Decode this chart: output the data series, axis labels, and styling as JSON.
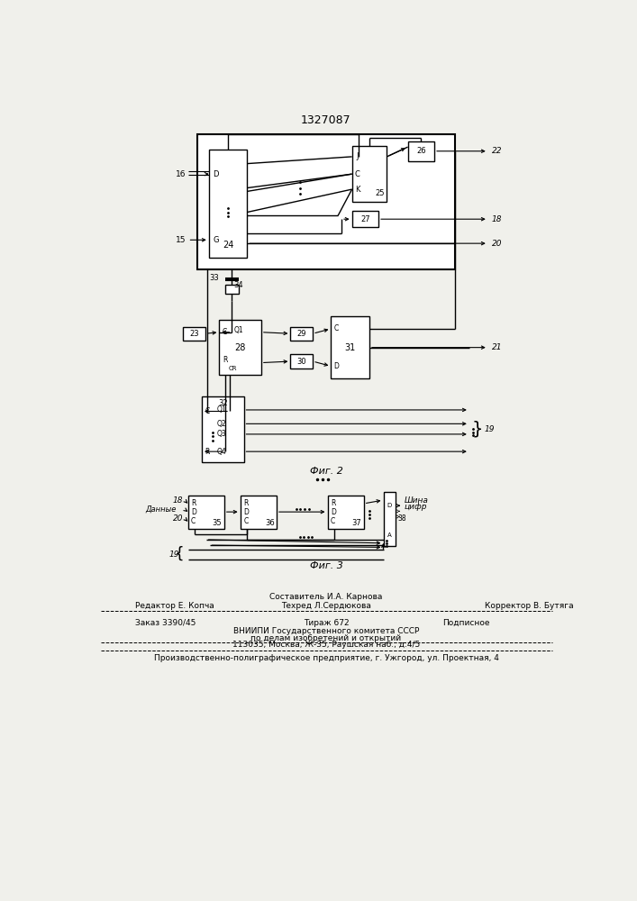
{
  "title": "1327087",
  "bg_color": "#f0f0eb",
  "lc": "#000000",
  "fig2_label": "Фиг. 2",
  "fig3_label": "Фиг. 3",
  "footer": {
    "line1": "Составитель И.А. Карнова",
    "line2_l": "Редактор Е. Копча",
    "line2_m": "Техред Л.Сердюкова",
    "line2_r": "Корректор В. Бутяга",
    "line3_l": "Заказ 3390/45",
    "line3_m": "Тираж 672",
    "line3_r": "Подписное",
    "line4": "ВНИИПИ Государственного комитета СССР",
    "line5": "по делам изобретений и открытий",
    "line6": "113035, Москва, Ж-35, Раушская наб., д.4/5",
    "line7": "Производственно-полиграфическое предприятие, г. Ужгород, ул. Проектная, 4"
  }
}
